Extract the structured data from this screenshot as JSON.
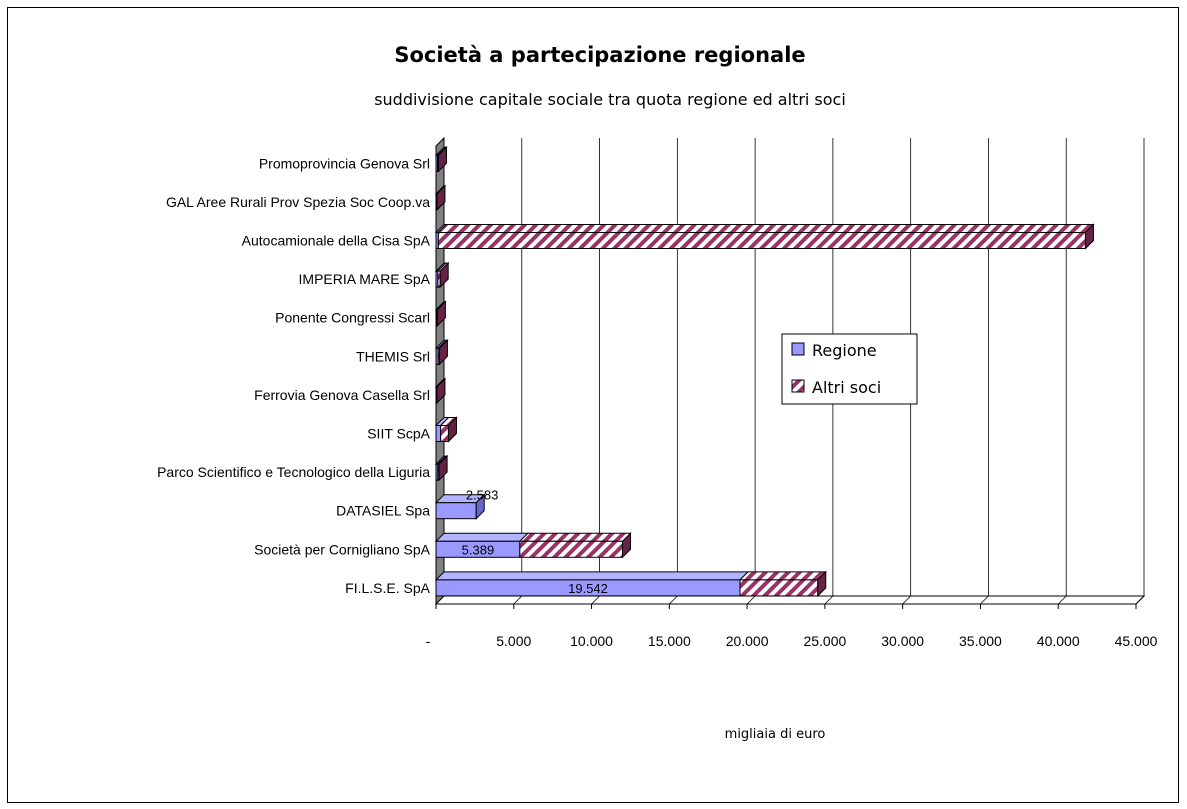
{
  "chart_data": {
    "type": "bar",
    "orientation": "horizontal",
    "stacked": true,
    "style_3d": true,
    "title": "Società a partecipazione regionale",
    "subtitle": "suddivisione capitale sociale tra quota regione ed altri soci",
    "xlabel": "migliaia di euro",
    "ylabel": "",
    "xlim": [
      0,
      45000
    ],
    "x_ticks": [
      0,
      5000,
      10000,
      15000,
      20000,
      25000,
      30000,
      35000,
      40000,
      45000
    ],
    "x_tick_labels": [
      "-",
      "5.000",
      "10.000",
      "15.000",
      "20.000",
      "25.000",
      "30.000",
      "35.000",
      "40.000",
      "45.000"
    ],
    "grid": "vertical",
    "legend_position": "right-center",
    "categories": [
      "Promoprovincia Genova Srl",
      "GAL Aree Rurali Prov Spezia Soc Coop.va",
      "Autocamionale della Cisa SpA",
      "IMPERIA MARE SpA",
      "Ponente Congressi Scarl",
      "THEMIS  Srl",
      "Ferrovia Genova Casella Srl",
      "SIIT ScpA",
      "Parco Scientifico e Tecnologico della Liguria",
      "DATASIEL  Spa",
      "Società per Cornigliano SpA",
      "FI.L.S.E. SpA"
    ],
    "series": [
      {
        "name": "Regione",
        "color": "#9999ff",
        "pattern": "solid",
        "values": [
          100,
          20,
          150,
          120,
          30,
          140,
          20,
          300,
          120,
          2583,
          5389,
          19542
        ],
        "data_labels": [
          "",
          "",
          "",
          "",
          "",
          "",
          "",
          "",
          "",
          "2.583",
          "5.389",
          "19.542"
        ]
      },
      {
        "name": "Altri soci",
        "color": "#993366",
        "pattern": "diagonal-stripes",
        "values": [
          60,
          40,
          41600,
          150,
          60,
          80,
          40,
          500,
          80,
          0,
          6600,
          5000
        ],
        "data_labels": [
          "",
          "",
          "",
          "",
          "",
          "",
          "",
          "",
          "",
          "",
          "",
          ""
        ]
      }
    ]
  }
}
